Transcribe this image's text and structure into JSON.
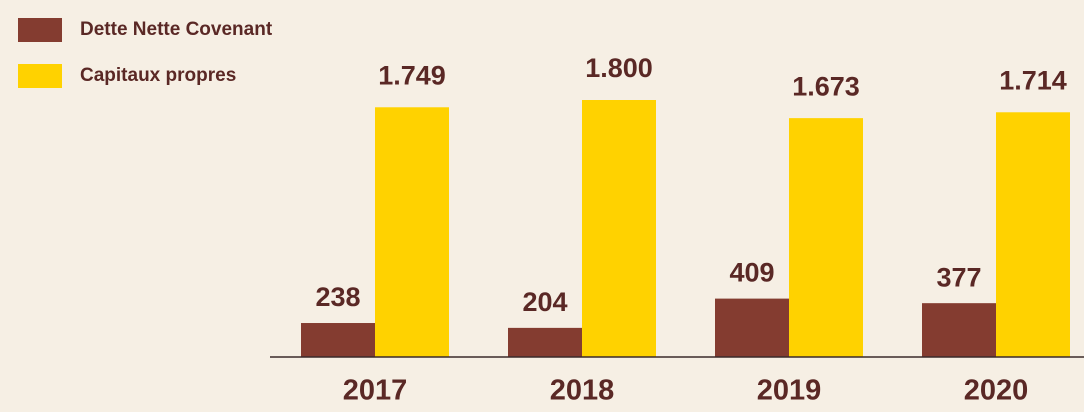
{
  "chart_data": {
    "type": "bar",
    "categories": [
      "2017",
      "2018",
      "2019",
      "2020"
    ],
    "series": [
      {
        "name": "Dette Nette Covenant",
        "color": "#843c30",
        "values": [
          238,
          204,
          409,
          377
        ],
        "value_labels": [
          "238",
          "204",
          "409",
          "377"
        ]
      },
      {
        "name": "Capitaux propres",
        "color": "#ffd200",
        "values": [
          1749,
          1800,
          1673,
          1714
        ],
        "value_labels": [
          "1.749",
          "1.800",
          "1.673",
          "1.714"
        ]
      }
    ],
    "ylim": [
      0,
      1800
    ],
    "legend": "top-left"
  }
}
